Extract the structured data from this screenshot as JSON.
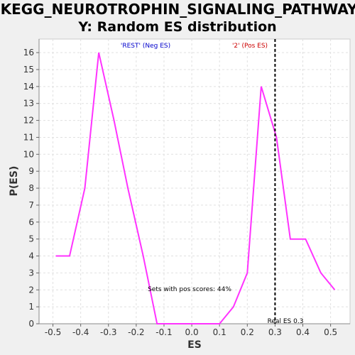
{
  "chart_data": {
    "type": "line",
    "title": "KEGG_NEUROTROPHIN_SIGNALING_PATHWAY",
    "subtitle": "Y: Random ES distribution",
    "xlabel": "ES",
    "ylabel": "P(ES)",
    "xlim": [
      -0.55,
      0.57
    ],
    "ylim": [
      0,
      16.8
    ],
    "xticks": [
      "-0.5",
      "-0.4",
      "-0.3",
      "-0.2",
      "-0.1",
      "0.0",
      "0.1",
      "0.2",
      "0.3",
      "0.4",
      "0.5"
    ],
    "yticks": [
      "0",
      "1",
      "2",
      "3",
      "4",
      "5",
      "6",
      "7",
      "8",
      "9",
      "10",
      "11",
      "12",
      "13",
      "14",
      "15",
      "16"
    ],
    "grid": true,
    "series": [
      {
        "x": [
          -0.49,
          -0.44,
          -0.385,
          -0.335,
          -0.28,
          -0.23,
          -0.175,
          -0.125,
          -0.07,
          -0.02,
          0.03,
          0.1,
          0.15,
          0.2,
          0.25,
          0.305,
          0.355,
          0.41,
          0.465,
          0.515
        ],
        "y": [
          4,
          4,
          8,
          16,
          12,
          8,
          4,
          0,
          0,
          0,
          0,
          0,
          1,
          3,
          14,
          11,
          5,
          5,
          3,
          2
        ],
        "color": "#ff33ff"
      }
    ],
    "real_es": 0.3,
    "annotations": {
      "neg_label": "'REST' (Neg ES)",
      "pos_label": "'2' (Pos ES)",
      "pos_scores": "Sets with pos scores: 44%",
      "real_es_label": "Real ES 0.3"
    },
    "colors": {
      "neg_label": "#0000cc",
      "pos_label": "#cc0000",
      "plot_bg": "#ffffff",
      "page_bg": "#f0f0f0"
    }
  }
}
